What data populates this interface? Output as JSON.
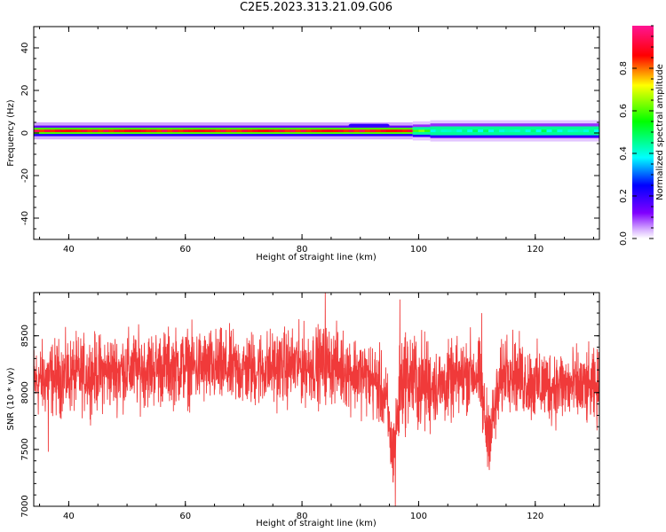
{
  "title": "C2E5.2023.313.21.09.G06",
  "chart_data": [
    {
      "type": "heatmap",
      "xlabel": "Height of straight line (km)",
      "ylabel": "Frequency (Hz)",
      "xlim": [
        34,
        131
      ],
      "ylim": [
        -50,
        50
      ],
      "xticks": [
        "40",
        "60",
        "80",
        "100",
        "120"
      ],
      "yticks": [
        "-40",
        "-20",
        "0",
        "20",
        "40"
      ],
      "band": {
        "center_hz": 1,
        "segments": [
          {
            "x": [
              34,
              99
            ],
            "core_halfwidth_hz": 0.6,
            "halfwidth_hz": 2.5,
            "core_amplitude": 0.95,
            "inner_amplitude": 0.6,
            "outer_amplitude": 0.15
          },
          {
            "x": [
              99,
              102
            ],
            "core_halfwidth_hz": 0.5,
            "halfwidth_hz": 3.0,
            "core_amplitude": 0.7,
            "inner_amplitude": 0.45,
            "outer_amplitude": 0.1
          },
          {
            "x": [
              102,
              131
            ],
            "core_halfwidth_hz": 0.6,
            "halfwidth_hz": 3.5,
            "core_amplitude": 0.5,
            "inner_amplitude": 0.45,
            "outer_amplitude": 0.1
          }
        ],
        "minor_blobs": [
          {
            "x": [
              88,
              95
            ],
            "freq_hz": 3.5,
            "amplitude": 0.2
          }
        ]
      },
      "colorbar": {
        "label": "Normalized spectral amplitude",
        "ticks": [
          "0.0",
          "0.2",
          "0.4",
          "0.6",
          "0.8"
        ],
        "range": [
          0,
          1
        ]
      }
    },
    {
      "type": "line",
      "xlabel": "Height of straight line (km)",
      "ylabel": "SNR (10 * v/v)",
      "xlim": [
        34,
        131
      ],
      "ylim": [
        7000,
        8880
      ],
      "xticks": [
        "40",
        "60",
        "80",
        "100",
        "120"
      ],
      "yticks": [
        "7000",
        "7500",
        "8000",
        "8500"
      ],
      "series": [
        {
          "color": "#f03a3a",
          "x_range": [
            34,
            131
          ],
          "baseline": [
            [
              34,
              8100
            ],
            [
              40,
              8150
            ],
            [
              50,
              8200
            ],
            [
              60,
              8230
            ],
            [
              70,
              8200
            ],
            [
              80,
              8240
            ],
            [
              85,
              8250
            ],
            [
              90,
              8160
            ],
            [
              93,
              8080
            ],
            [
              94.5,
              7900
            ],
            [
              95.5,
              7450
            ],
            [
              96.2,
              7700
            ],
            [
              97,
              8100
            ],
            [
              98,
              8150
            ],
            [
              100,
              8080
            ],
            [
              104,
              8060
            ],
            [
              107,
              8120
            ],
            [
              109,
              8200
            ],
            [
              110.5,
              8120
            ],
            [
              111.5,
              7700
            ],
            [
              112.5,
              7680
            ],
            [
              113.5,
              7950
            ],
            [
              115,
              8250
            ],
            [
              117,
              8140
            ],
            [
              120,
              8070
            ],
            [
              125,
              8060
            ],
            [
              131,
              8020
            ]
          ],
          "noise_amplitude": 230,
          "extremes": [
            {
              "x": 84,
              "y": 8880
            },
            {
              "x": 96.0,
              "y": 7000
            },
            {
              "x": 95.7,
              "y": 7270
            },
            {
              "x": 96.8,
              "y": 8820
            },
            {
              "x": 110.8,
              "y": 8700
            },
            {
              "x": 36.5,
              "y": 7480
            }
          ]
        }
      ]
    }
  ]
}
